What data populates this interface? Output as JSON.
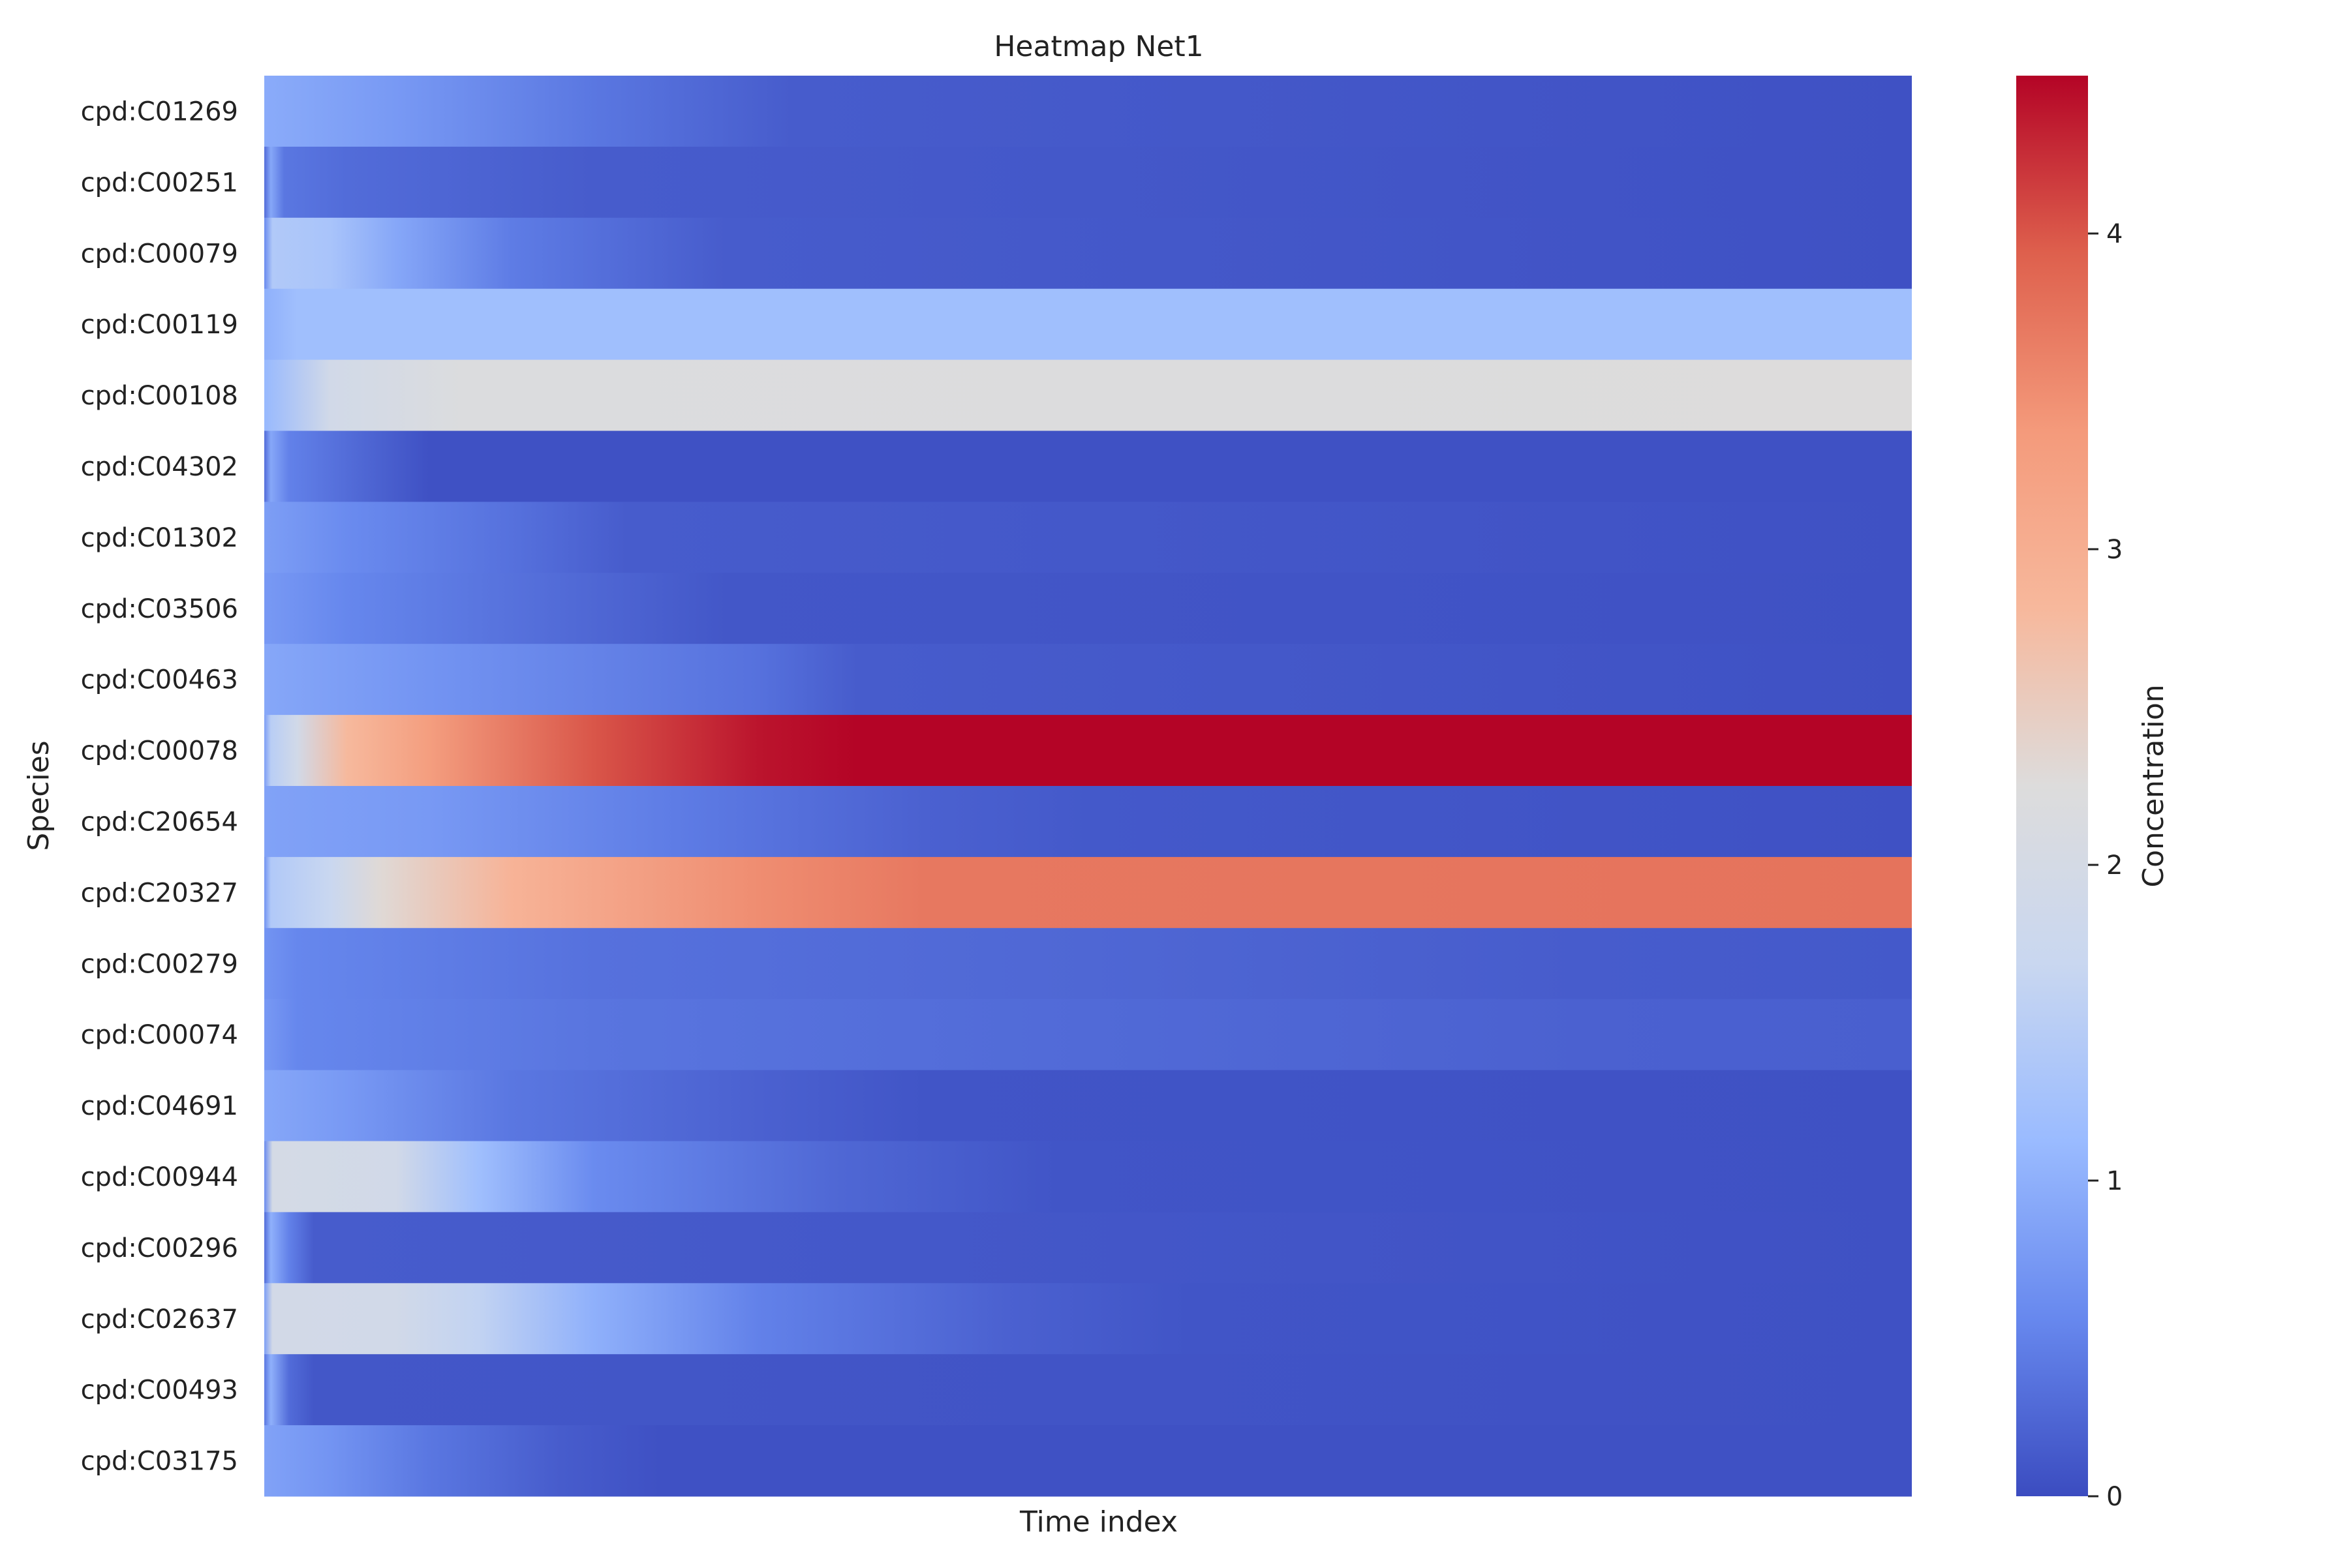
{
  "chart_data": {
    "type": "heatmap",
    "title": "Heatmap Net1",
    "xlabel": "Time index",
    "ylabel": "Species",
    "colorbar": {
      "label": "Concentration",
      "range": [
        0,
        4.5
      ],
      "ticks": [
        "0",
        "1",
        "2",
        "3",
        "4"
      ],
      "colormap": "coolwarm",
      "colors": [
        "#3b4cc0",
        "#6788ee",
        "#9abbff",
        "#c9d7f0",
        "#dddcdc",
        "#f7b89c",
        "#f49a7b",
        "#de604d",
        "#b40426"
      ]
    },
    "x_tick_labels": "hidden",
    "rows": [
      {
        "species": "cpd:C01269",
        "profile": [
          [
            0,
            0.95
          ],
          [
            0.02,
            0.9
          ],
          [
            0.08,
            0.75
          ],
          [
            0.2,
            0.4
          ],
          [
            0.32,
            0.15
          ],
          [
            1,
            0.05
          ]
        ]
      },
      {
        "species": "cpd:C00251",
        "profile": [
          [
            0,
            0.3
          ],
          [
            0.004,
            0.9
          ],
          [
            0.012,
            0.4
          ],
          [
            0.05,
            0.3
          ],
          [
            0.2,
            0.15
          ],
          [
            1,
            0.05
          ]
        ]
      },
      {
        "species": "cpd:C00079",
        "profile": [
          [
            0,
            0.6
          ],
          [
            0.005,
            1.4
          ],
          [
            0.04,
            1.3
          ],
          [
            0.08,
            0.9
          ],
          [
            0.15,
            0.45
          ],
          [
            0.28,
            0.15
          ],
          [
            1,
            0.05
          ]
        ]
      },
      {
        "species": "cpd:C00119",
        "profile": [
          [
            0,
            1.0
          ],
          [
            0.02,
            1.2
          ],
          [
            1,
            1.2
          ]
        ]
      },
      {
        "species": "cpd:C00108",
        "profile": [
          [
            0,
            1.1
          ],
          [
            0.04,
            1.9
          ],
          [
            0.12,
            2.2
          ],
          [
            1,
            2.25
          ]
        ]
      },
      {
        "species": "cpd:C04302",
        "profile": [
          [
            0,
            0.3
          ],
          [
            0.004,
            0.9
          ],
          [
            0.015,
            0.5
          ],
          [
            0.06,
            0.25
          ],
          [
            0.1,
            0.05
          ],
          [
            1,
            0.05
          ]
        ]
      },
      {
        "species": "cpd:C01302",
        "profile": [
          [
            0,
            0.8
          ],
          [
            0.05,
            0.6
          ],
          [
            0.15,
            0.35
          ],
          [
            0.22,
            0.15
          ],
          [
            1,
            0.05
          ]
        ]
      },
      {
        "species": "cpd:C03506",
        "profile": [
          [
            0,
            0.75
          ],
          [
            0.05,
            0.55
          ],
          [
            0.2,
            0.25
          ],
          [
            0.28,
            0.1
          ],
          [
            1,
            0.05
          ]
        ]
      },
      {
        "species": "cpd:C00463",
        "profile": [
          [
            0,
            0.9
          ],
          [
            0.1,
            0.7
          ],
          [
            0.3,
            0.35
          ],
          [
            0.36,
            0.15
          ],
          [
            1,
            0.05
          ]
        ]
      },
      {
        "species": "cpd:C00078",
        "profile": [
          [
            0,
            0.8
          ],
          [
            0.004,
            1.5
          ],
          [
            0.02,
            1.9
          ],
          [
            0.05,
            2.8
          ],
          [
            0.1,
            3.3
          ],
          [
            0.2,
            4.0
          ],
          [
            0.3,
            4.4
          ],
          [
            0.36,
            4.5
          ],
          [
            1,
            4.5
          ]
        ]
      },
      {
        "species": "cpd:C20654",
        "profile": [
          [
            0,
            0.85
          ],
          [
            0.1,
            0.75
          ],
          [
            0.25,
            0.45
          ],
          [
            0.4,
            0.2
          ],
          [
            0.5,
            0.12
          ],
          [
            1,
            0.05
          ]
        ]
      },
      {
        "species": "cpd:C20327",
        "profile": [
          [
            0,
            0.7
          ],
          [
            0.004,
            1.4
          ],
          [
            0.04,
            1.7
          ],
          [
            0.07,
            2.3
          ],
          [
            0.15,
            2.9
          ],
          [
            0.3,
            3.5
          ],
          [
            0.4,
            3.7
          ],
          [
            1,
            3.75
          ]
        ]
      },
      {
        "species": "cpd:C00279",
        "profile": [
          [
            0,
            0.7
          ],
          [
            0.02,
            0.55
          ],
          [
            0.2,
            0.35
          ],
          [
            0.5,
            0.25
          ],
          [
            0.8,
            0.15
          ],
          [
            1,
            0.12
          ]
        ]
      },
      {
        "species": "cpd:C00074",
        "profile": [
          [
            0,
            0.75
          ],
          [
            0.02,
            0.55
          ],
          [
            0.2,
            0.38
          ],
          [
            0.5,
            0.28
          ],
          [
            0.8,
            0.2
          ],
          [
            1,
            0.18
          ]
        ]
      },
      {
        "species": "cpd:C04691",
        "profile": [
          [
            0,
            0.9
          ],
          [
            0.05,
            0.75
          ],
          [
            0.15,
            0.4
          ],
          [
            0.3,
            0.2
          ],
          [
            0.4,
            0.08
          ],
          [
            1,
            0.05
          ]
        ]
      },
      {
        "species": "cpd:C00944",
        "profile": [
          [
            0,
            0.6
          ],
          [
            0.005,
            2.0
          ],
          [
            0.08,
            1.9
          ],
          [
            0.13,
            1.2
          ],
          [
            0.2,
            0.6
          ],
          [
            0.35,
            0.25
          ],
          [
            0.48,
            0.08
          ],
          [
            1,
            0.05
          ]
        ]
      },
      {
        "species": "cpd:C00296",
        "profile": [
          [
            0,
            0.3
          ],
          [
            0.004,
            1.0
          ],
          [
            0.015,
            0.5
          ],
          [
            0.03,
            0.15
          ],
          [
            1,
            0.05
          ]
        ]
      },
      {
        "species": "cpd:C02637",
        "profile": [
          [
            0,
            0.8
          ],
          [
            0.005,
            1.95
          ],
          [
            0.08,
            1.9
          ],
          [
            0.13,
            1.6
          ],
          [
            0.2,
            1.0
          ],
          [
            0.3,
            0.5
          ],
          [
            0.45,
            0.2
          ],
          [
            0.56,
            0.08
          ],
          [
            1,
            0.05
          ]
        ]
      },
      {
        "species": "cpd:C00493",
        "profile": [
          [
            0,
            0.4
          ],
          [
            0.004,
            1.0
          ],
          [
            0.015,
            0.3
          ],
          [
            0.03,
            0.1
          ],
          [
            1,
            0.05
          ]
        ]
      },
      {
        "species": "cpd:C03175",
        "profile": [
          [
            0,
            0.85
          ],
          [
            0.04,
            0.7
          ],
          [
            0.1,
            0.4
          ],
          [
            0.18,
            0.15
          ],
          [
            0.24,
            0.05
          ],
          [
            1,
            0.05
          ]
        ]
      }
    ]
  }
}
